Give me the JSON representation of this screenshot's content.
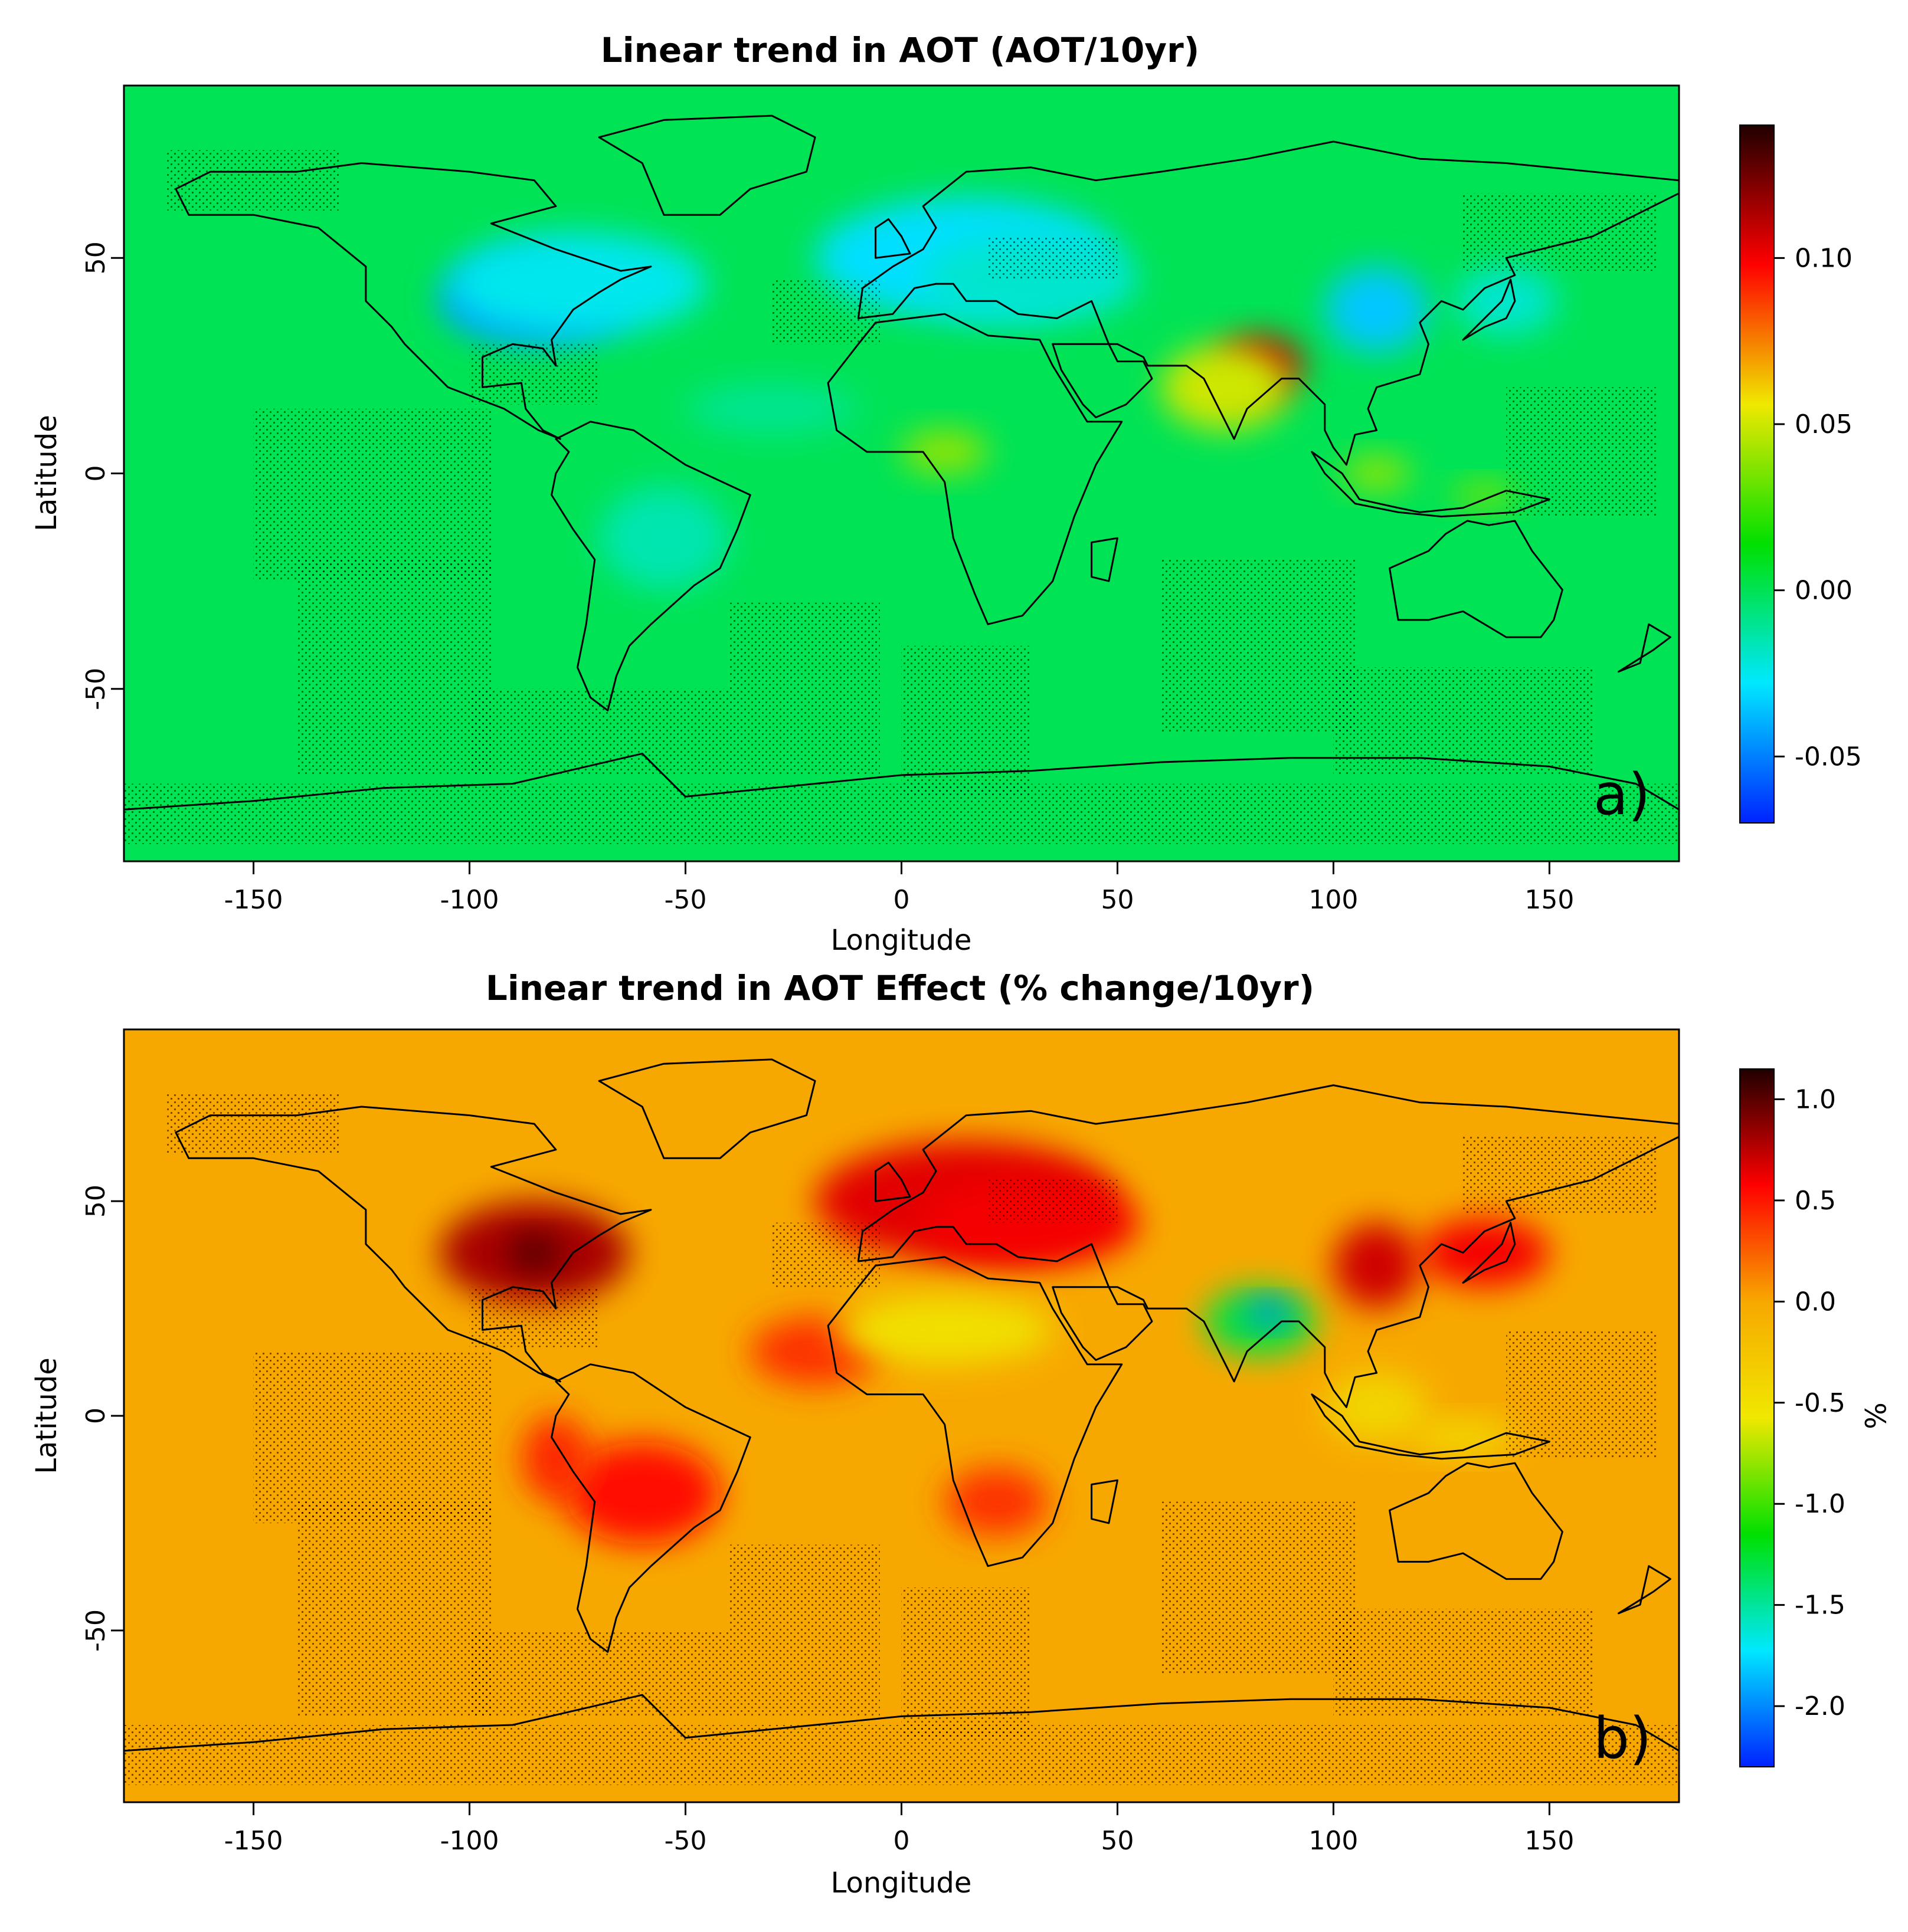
{
  "chart_data": [
    {
      "type": "heatmap",
      "title": "Linear trend in AOT (AOT/10yr)",
      "xlabel": "Longitude",
      "ylabel": "Latitude",
      "xlim": [
        -180,
        180
      ],
      "ylim": [
        -90,
        90
      ],
      "xticks": [
        -150,
        -100,
        -50,
        0,
        50,
        100,
        150
      ],
      "yticks": [
        50,
        0,
        -50
      ],
      "xtick_labels": [
        "-150",
        "-100",
        "-50",
        "0",
        "50",
        "100",
        "150"
      ],
      "ytick_labels": [
        "50",
        "0",
        "-50"
      ],
      "panel_label": "a)",
      "colorbar": {
        "label": "",
        "range": [
          -0.07,
          0.14
        ],
        "ticks": [
          0.1,
          0.05,
          0.0,
          -0.05
        ],
        "tick_labels": [
          "0.10",
          "0.05",
          "0.00",
          "-0.05"
        ],
        "colors": [
          "#0022ff",
          "#00e8ff",
          "#00e000",
          "#f0e800",
          "#ff0000",
          "#200000"
        ]
      },
      "background_value": 0.0,
      "regions": [
        {
          "lon": -85,
          "lat": 40,
          "rlon": 22,
          "rlat": 10,
          "value": -0.045
        },
        {
          "lon": -75,
          "lat": 44,
          "rlon": 30,
          "rlat": 12,
          "value": -0.025
        },
        {
          "lon": 15,
          "lat": 50,
          "rlon": 35,
          "rlat": 14,
          "value": -0.03
        },
        {
          "lon": 30,
          "lat": 45,
          "rlon": 25,
          "rlat": 10,
          "value": -0.02
        },
        {
          "lon": 110,
          "lat": 38,
          "rlon": 12,
          "rlat": 10,
          "value": -0.035
        },
        {
          "lon": 140,
          "lat": 40,
          "rlon": 12,
          "rlat": 8,
          "value": -0.02
        },
        {
          "lon": -30,
          "lat": 15,
          "rlon": 20,
          "rlat": 6,
          "value": -0.01
        },
        {
          "lon": -55,
          "lat": -15,
          "rlon": 15,
          "rlat": 12,
          "value": -0.015
        },
        {
          "lon": 83,
          "lat": 25,
          "rlon": 10,
          "rlat": 7,
          "value": 0.11
        },
        {
          "lon": 75,
          "lat": 20,
          "rlon": 15,
          "rlat": 10,
          "value": 0.05
        },
        {
          "lon": 10,
          "lat": 5,
          "rlon": 10,
          "rlat": 5,
          "value": 0.04
        },
        {
          "lon": 110,
          "lat": 0,
          "rlon": 8,
          "rlat": 4,
          "value": 0.04
        },
        {
          "lon": 135,
          "lat": -5,
          "rlon": 8,
          "rlat": 3,
          "value": 0.035
        }
      ]
    },
    {
      "type": "heatmap",
      "title": "Linear trend in AOT Effect (% change/10yr)",
      "xlabel": "Longitude",
      "ylabel": "Latitude",
      "xlim": [
        -180,
        180
      ],
      "ylim": [
        -90,
        90
      ],
      "xticks": [
        -150,
        -100,
        -50,
        0,
        50,
        100,
        150
      ],
      "yticks": [
        50,
        0,
        -50
      ],
      "xtick_labels": [
        "-150",
        "-100",
        "-50",
        "0",
        "50",
        "100",
        "150"
      ],
      "ytick_labels": [
        "50",
        "0",
        "-50"
      ],
      "panel_label": "b)",
      "colorbar": {
        "label": "%",
        "range": [
          -2.3,
          1.15
        ],
        "ticks": [
          1.0,
          0.5,
          0.0,
          -0.5,
          -1.0,
          -1.5,
          -2.0
        ],
        "tick_labels": [
          "1.0",
          "0.5",
          "0.0",
          "-0.5",
          "-1.0",
          "-1.5",
          "-2.0"
        ],
        "colors": [
          "#0022ff",
          "#00e8ff",
          "#00e000",
          "#f0e800",
          "#f7a800",
          "#ff0000",
          "#200000"
        ]
      },
      "background_value": 0.0,
      "regions": [
        {
          "lon": -85,
          "lat": 38,
          "rlon": 22,
          "rlat": 12,
          "value": 0.8
        },
        {
          "lon": -85,
          "lat": 38,
          "rlon": 6,
          "rlat": 4,
          "value": 1.05
        },
        {
          "lon": 15,
          "lat": 50,
          "rlon": 35,
          "rlat": 14,
          "value": 0.65
        },
        {
          "lon": 30,
          "lat": 45,
          "rlon": 25,
          "rlat": 10,
          "value": 0.6
        },
        {
          "lon": 110,
          "lat": 35,
          "rlon": 10,
          "rlat": 10,
          "value": 0.7
        },
        {
          "lon": 135,
          "lat": 38,
          "rlon": 15,
          "rlat": 8,
          "value": 0.6
        },
        {
          "lon": -20,
          "lat": 15,
          "rlon": 15,
          "rlat": 8,
          "value": 0.4
        },
        {
          "lon": -60,
          "lat": -18,
          "rlon": 18,
          "rlat": 12,
          "value": 0.55
        },
        {
          "lon": -80,
          "lat": -10,
          "rlon": 8,
          "rlat": 10,
          "value": 0.45
        },
        {
          "lon": 22,
          "lat": -20,
          "rlon": 12,
          "rlat": 8,
          "value": 0.4
        },
        {
          "lon": 10,
          "lat": 20,
          "rlon": 25,
          "rlat": 8,
          "value": -0.5
        },
        {
          "lon": 83,
          "lat": 22,
          "rlon": 13,
          "rlat": 8,
          "value": -1.3
        },
        {
          "lon": 85,
          "lat": 24,
          "rlon": 5,
          "rlat": 3,
          "value": -2.0
        },
        {
          "lon": 110,
          "lat": 2,
          "rlon": 12,
          "rlat": 8,
          "value": -0.4
        },
        {
          "lon": 130,
          "lat": -5,
          "rlon": 12,
          "rlat": 4,
          "value": -0.45
        }
      ]
    }
  ]
}
